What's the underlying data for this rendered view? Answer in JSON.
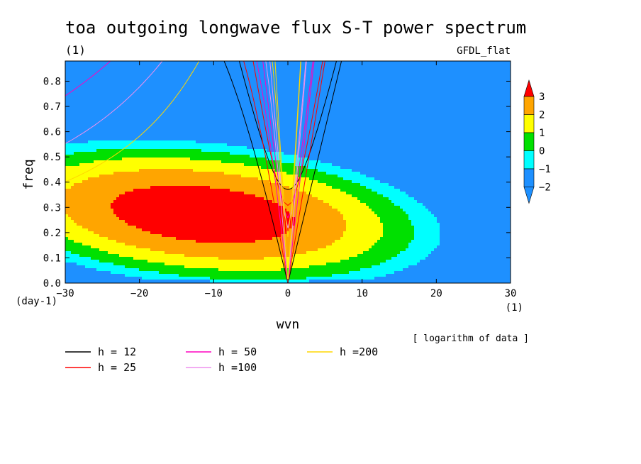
{
  "chart_data": {
    "type": "heatmap",
    "title": "toa outgoing longwave flux S-T power spectrum",
    "title_units": "(1)",
    "model_label": "GFDL_flat",
    "xlabel": "wvn",
    "x_unit_label": "(1)",
    "ylabel": "freq",
    "y_unit_label": "(day-1)",
    "note": "[ logarithm of data ]",
    "xlim": [
      -30,
      30
    ],
    "ylim": [
      0,
      0.88
    ],
    "x_ticks": [
      -30,
      -20,
      -10,
      0,
      10,
      20,
      30
    ],
    "y_ticks": [
      0.0,
      0.1,
      0.2,
      0.3,
      0.4,
      0.5,
      0.6,
      0.7,
      0.8
    ],
    "x_tick_labels": [
      "−30",
      "−20",
      "−10",
      "0",
      "10",
      "20",
      "30"
    ],
    "y_tick_labels": [
      "0.0",
      "0.1",
      "0.2",
      "0.3",
      "0.4",
      "0.5",
      "0.6",
      "0.7",
      "0.8"
    ],
    "colorbar": {
      "labels": [
        "3",
        "2",
        "1",
        "0",
        "−1",
        "−2"
      ],
      "levels": [
        3,
        2,
        1,
        0,
        -1,
        -2
      ],
      "colors_top_to_bottom": [
        "#ff0000",
        "#ffa500",
        "#ffff00",
        "#00e000",
        "#00ffff",
        "#1e90ff",
        "#1e90ff"
      ]
    },
    "shaded_levels": [
      {
        "value": -2.5,
        "color": "#1e90ff"
      },
      {
        "value": -1.5,
        "color": "#00ffff"
      },
      {
        "value": -0.5,
        "color": "#00e000"
      },
      {
        "value": 0.5,
        "color": "#ffff00"
      },
      {
        "value": 1.5,
        "color": "#ffa500"
      },
      {
        "value": 2.5,
        "color": "#ff0000"
      }
    ],
    "dispersion_curves": [
      {
        "name": "h = 12",
        "h": 12,
        "color": "#000000"
      },
      {
        "name": "h = 25",
        "h": 25,
        "color": "#ff0000"
      },
      {
        "name": "h = 50",
        "h": 50,
        "color": "#ff00c0"
      },
      {
        "name": "h =100",
        "h": 100,
        "color": "#ee90ee"
      },
      {
        "name": "h =200",
        "h": 200,
        "color": "#ffd700"
      }
    ]
  }
}
